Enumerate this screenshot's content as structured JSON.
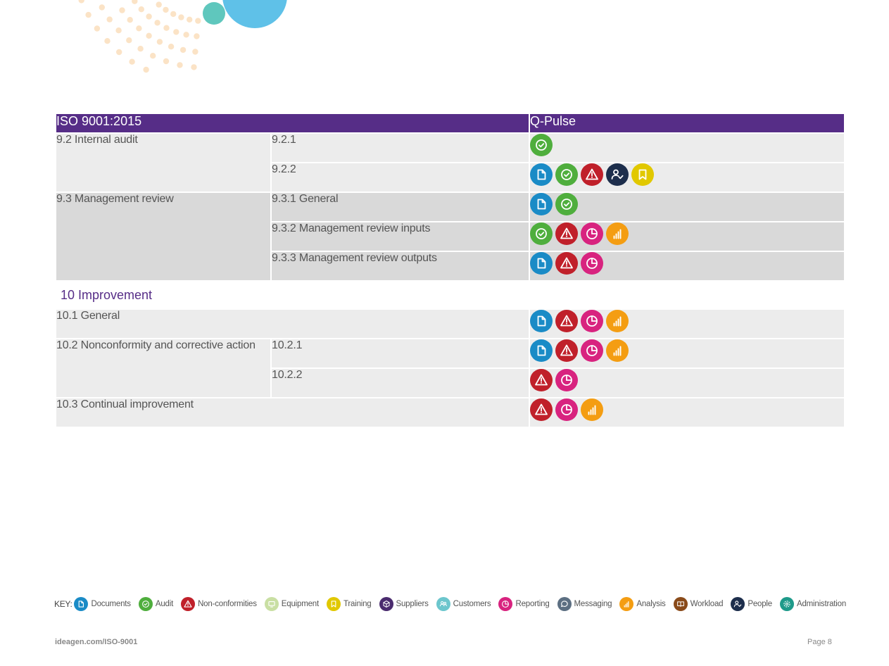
{
  "colors": {
    "documents": "#1a8bc6",
    "audit": "#4fae3d",
    "nonconformities": "#c0202a",
    "equipment": "#c9dfa3",
    "training": "#e1c800",
    "suppliers": "#4a2b6e",
    "customers": "#6cc6cd",
    "reporting": "#d8237f",
    "messaging": "#5c6f82",
    "analysis": "#f49d12",
    "workload": "#8a4b1a",
    "people": "#1d2e4c",
    "administration": "#1e9a8a",
    "header": "#562d87"
  },
  "table": {
    "header_left": "ISO 9001:2015",
    "header_right": "Q-Pulse",
    "rows": [
      {
        "clause": "9.2 Internal audit",
        "subclause": "9.2.1",
        "icons": [
          "audit"
        ]
      },
      {
        "clause": "",
        "subclause": "9.2.2",
        "icons": [
          "documents",
          "audit",
          "nonconformities",
          "people",
          "training"
        ]
      },
      {
        "clause": "9.3 Management review",
        "subclause": "9.3.1 General",
        "icons": [
          "documents",
          "audit"
        ]
      },
      {
        "clause": "",
        "subclause": "9.3.2 Management review inputs",
        "icons": [
          "audit",
          "nonconformities",
          "reporting",
          "analysis"
        ]
      },
      {
        "clause": "",
        "subclause": "9.3.3 Management review outputs",
        "icons": [
          "documents",
          "nonconformities",
          "reporting"
        ]
      },
      {
        "section": "10 Improvement"
      },
      {
        "clause": "10.1 General",
        "subclause": "",
        "icons": [
          "documents",
          "nonconformities",
          "reporting",
          "analysis"
        ]
      },
      {
        "clause": "10.2 Nonconformity and corrective action",
        "subclause": "10.2.1",
        "icons": [
          "documents",
          "nonconformities",
          "reporting",
          "analysis"
        ]
      },
      {
        "clause": "",
        "subclause": "10.2.2",
        "icons": [
          "nonconformities",
          "reporting"
        ]
      },
      {
        "clause": "10.3 Continual improvement",
        "subclause": "",
        "icons": [
          "nonconformities",
          "reporting",
          "analysis"
        ]
      }
    ]
  },
  "key": {
    "label": "KEY:",
    "items": [
      {
        "icon": "documents",
        "label": "Documents"
      },
      {
        "icon": "audit",
        "label": "Audit"
      },
      {
        "icon": "nonconformities",
        "label": "Non-conformities"
      },
      {
        "icon": "equipment",
        "label": "Equipment"
      },
      {
        "icon": "training",
        "label": "Training"
      },
      {
        "icon": "suppliers",
        "label": "Suppliers"
      },
      {
        "icon": "customers",
        "label": "Customers"
      },
      {
        "icon": "reporting",
        "label": "Reporting"
      },
      {
        "icon": "messaging",
        "label": "Messaging"
      },
      {
        "icon": "analysis",
        "label": "Analysis"
      },
      {
        "icon": "workload",
        "label": "Workload"
      },
      {
        "icon": "people",
        "label": "People"
      },
      {
        "icon": "administration",
        "label": "Administration"
      }
    ]
  },
  "footer": {
    "url": "ideagen.com/ISO-9001",
    "page": "Page 8"
  }
}
